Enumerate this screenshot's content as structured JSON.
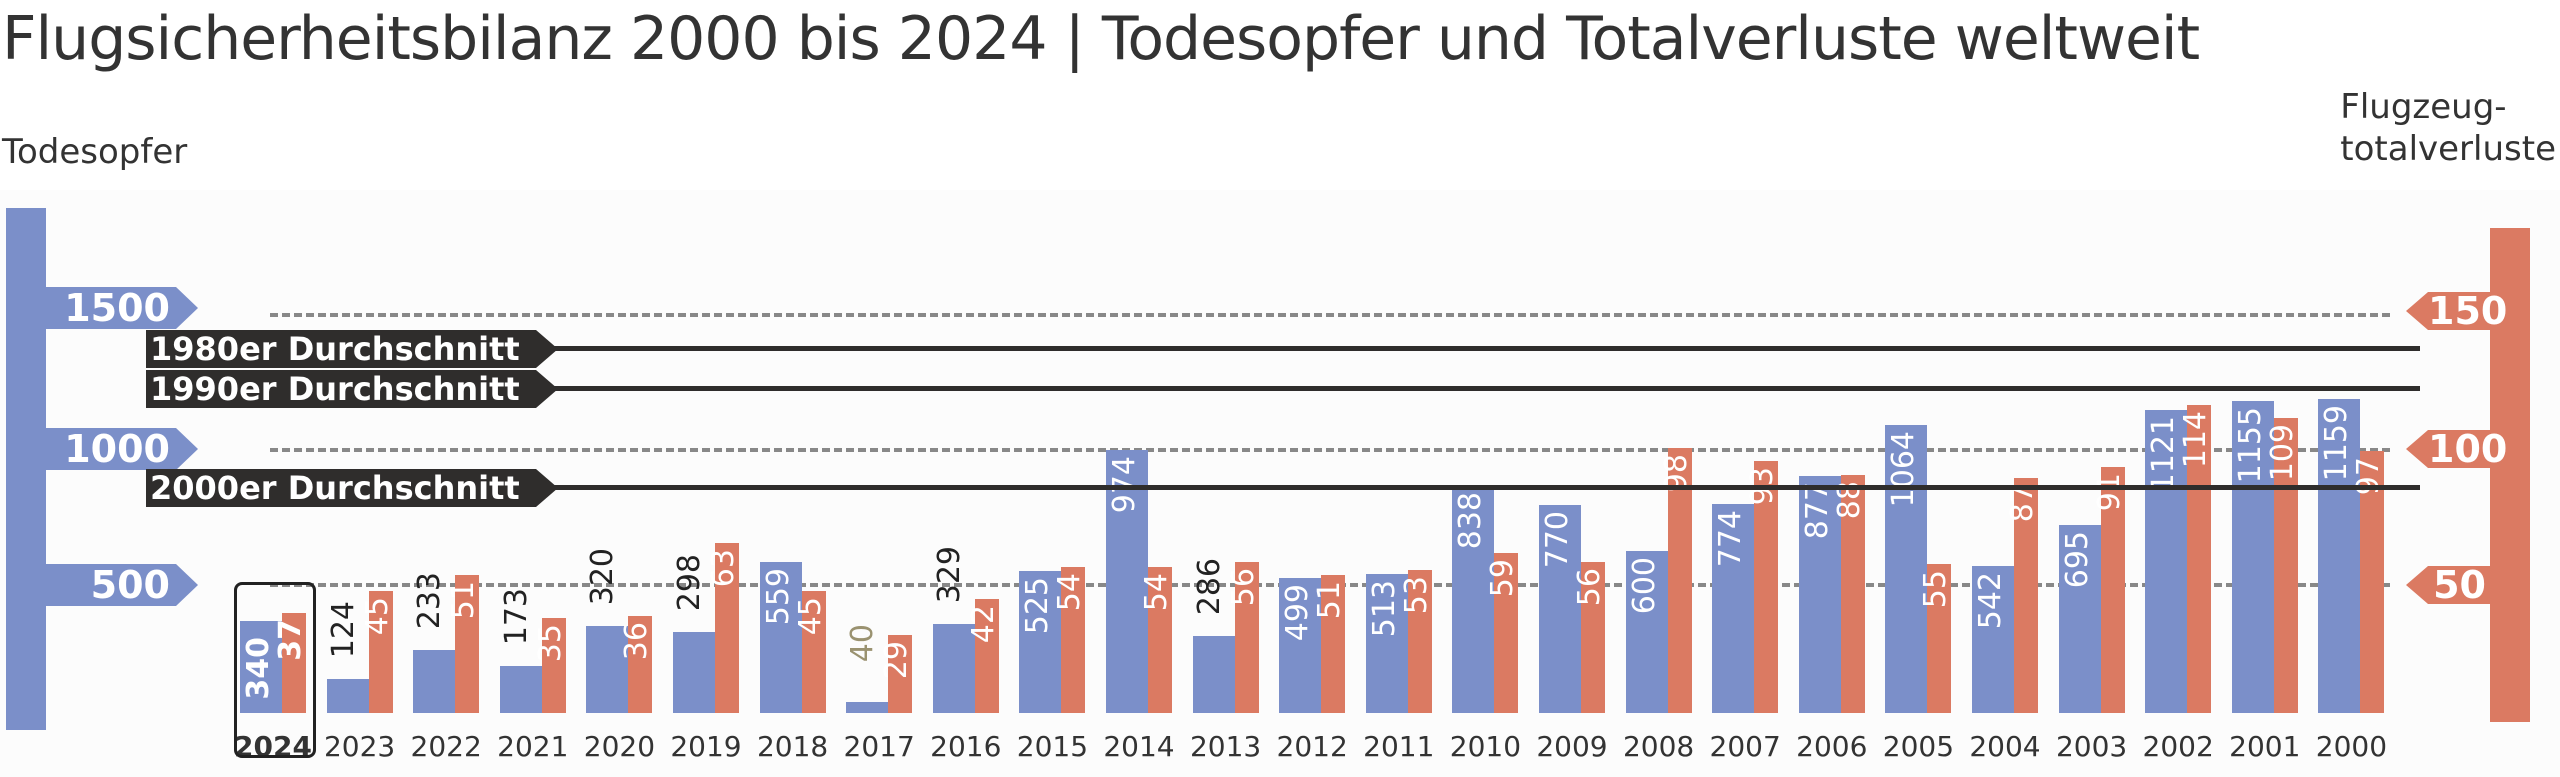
{
  "title": "Flugsicherheitsbilanz 2000 bis 2024 | Todesopfer und Totalverluste weltweit",
  "left_axis": {
    "title": "Todesopfer",
    "ticks": [
      "1500",
      "1000",
      "500"
    ],
    "color": "#7b8fc9"
  },
  "right_axis": {
    "title_line1": "Flugzeug-",
    "title_line2": "totalverluste",
    "ticks": [
      "150",
      "100",
      "50"
    ],
    "color": "#db7a62"
  },
  "averages": [
    {
      "label": "1980er Durchschnitt"
    },
    {
      "label": "1990er Durchschnitt"
    },
    {
      "label": "2000er Durchschnitt"
    }
  ],
  "highlight_year": "2024",
  "chart_data": {
    "type": "bar",
    "title": "Flugsicherheitsbilanz 2000 bis 2024 | Todesopfer und Totalverluste weltweit",
    "xlabel": "",
    "ylabel": "Todesopfer",
    "ylabel_right": "Flugzeugtotalverluste",
    "ylim": [
      0,
      1600
    ],
    "ylim_right": [
      0,
      160
    ],
    "grid": true,
    "categories": [
      "2024",
      "2023",
      "2022",
      "2021",
      "2020",
      "2019",
      "2018",
      "2017",
      "2016",
      "2015",
      "2014",
      "2013",
      "2012",
      "2011",
      "2010",
      "2009",
      "2008",
      "2007",
      "2006",
      "2005",
      "2004",
      "2003",
      "2002",
      "2001",
      "2000"
    ],
    "series": [
      {
        "name": "Todesopfer",
        "axis": "left",
        "color": "#7b8fc9",
        "values": [
          340,
          124,
          233,
          173,
          320,
          298,
          559,
          40,
          329,
          525,
          974,
          286,
          499,
          513,
          838,
          770,
          600,
          774,
          877,
          1064,
          542,
          695,
          1121,
          1155,
          1159
        ]
      },
      {
        "name": "Flugzeugtotalverluste",
        "axis": "right",
        "color": "#db7a62",
        "values": [
          37,
          45,
          51,
          35,
          36,
          63,
          45,
          29,
          42,
          54,
          54,
          56,
          51,
          53,
          59,
          56,
          98,
          93,
          88,
          55,
          87,
          91,
          114,
          109,
          97
        ]
      }
    ],
    "reference_lines": [
      {
        "label": "1980er Durchschnitt",
        "axis": "left",
        "approx_value": 1425
      },
      {
        "label": "1990er Durchschnitt",
        "axis": "left",
        "approx_value": 1270
      },
      {
        "label": "2000er Durchschnitt",
        "axis": "left",
        "approx_value": 885
      }
    ],
    "left_ticks": [
      500,
      1000,
      1500
    ],
    "right_ticks": [
      50,
      100,
      150
    ]
  }
}
